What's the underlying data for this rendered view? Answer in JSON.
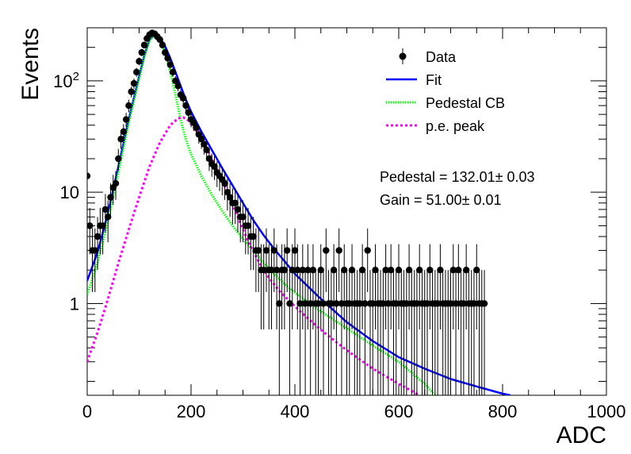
{
  "chart_data": {
    "type": "scatter",
    "xlabel": "ADC",
    "ylabel": "Events",
    "xlim": [
      0,
      1000
    ],
    "ylim": [
      0.15,
      300
    ],
    "yscale": "log",
    "grid": false,
    "legend_position": "top-right",
    "x_ticks": [
      {
        "value": 0,
        "label": "0"
      },
      {
        "value": 200,
        "label": "200"
      },
      {
        "value": 400,
        "label": "400"
      },
      {
        "value": 600,
        "label": "600"
      },
      {
        "value": 800,
        "label": "800"
      },
      {
        "value": 1000,
        "label": "1000"
      }
    ],
    "y_ticks": [
      {
        "value": 1,
        "label": "1"
      },
      {
        "value": 10,
        "label": "10"
      },
      {
        "value": 100,
        "label": "10",
        "sup": "2"
      }
    ],
    "legend": [
      {
        "label": "Data",
        "style": "marker",
        "color": "#000000"
      },
      {
        "label": "Fit",
        "style": "line",
        "color": "#0000ff"
      },
      {
        "label": "Pedestal CB",
        "style": "dotted",
        "color": "#00ff00"
      },
      {
        "label": "p.e. peak",
        "style": "dashed",
        "color": "#ff00ff"
      }
    ],
    "annotations": [
      "Pedestal = 132.01± 0.03",
      "Gain = 51.00± 0.01"
    ],
    "series": [
      {
        "name": "Data",
        "kind": "points",
        "color": "#000000",
        "x": [
          0,
          5,
          10,
          15,
          20,
          25,
          30,
          35,
          40,
          45,
          50,
          55,
          60,
          65,
          70,
          75,
          80,
          85,
          90,
          95,
          100,
          105,
          110,
          115,
          120,
          125,
          130,
          135,
          140,
          145,
          150,
          155,
          160,
          165,
          170,
          175,
          180,
          185,
          190,
          195,
          200,
          205,
          210,
          215,
          220,
          225,
          230,
          235,
          240,
          245,
          250,
          255,
          260,
          265,
          270,
          275,
          280,
          285,
          290,
          295,
          300,
          305,
          310,
          315,
          320,
          325,
          330,
          335,
          340,
          345,
          350,
          355,
          360,
          365,
          370,
          375,
          380,
          385,
          390,
          395,
          400,
          405,
          410,
          415,
          420,
          425,
          430,
          435,
          440,
          445,
          450,
          455,
          460,
          465,
          470,
          475,
          480,
          485,
          490,
          495,
          500,
          505,
          510,
          515,
          520,
          525,
          530,
          535,
          540,
          545,
          550,
          555,
          560,
          565,
          570,
          575,
          580,
          585,
          590,
          595,
          600,
          605,
          610,
          615,
          620,
          625,
          630,
          635,
          640,
          645,
          650,
          655,
          660,
          665,
          670,
          675,
          680,
          685,
          690,
          695,
          700,
          705,
          710,
          715,
          720,
          725,
          730,
          735,
          740,
          745,
          750,
          755,
          760,
          765
        ],
        "y": [
          14,
          5,
          3,
          3,
          4,
          5,
          5,
          7,
          6,
          9,
          11,
          12,
          20,
          30,
          35,
          45,
          60,
          80,
          95,
          120,
          150,
          180,
          210,
          240,
          260,
          270,
          265,
          250,
          235,
          210,
          180,
          160,
          140,
          120,
          100,
          90,
          75,
          70,
          60,
          52,
          45,
          42,
          38,
          33,
          30,
          27,
          24,
          20,
          18,
          17,
          15,
          14,
          13,
          12,
          10,
          9,
          8,
          8,
          7,
          6,
          6,
          5,
          5,
          4,
          4,
          3,
          3,
          2,
          2,
          3,
          2,
          2,
          3,
          2,
          1,
          2,
          2,
          3,
          1,
          2,
          3,
          2,
          1,
          2,
          1,
          2,
          1,
          2,
          1,
          1,
          2,
          1,
          3,
          1,
          1,
          2,
          1,
          3,
          1,
          2,
          1,
          1,
          2,
          1,
          1,
          1,
          2,
          1,
          3,
          1,
          1,
          2,
          1,
          1,
          1,
          2,
          1,
          2,
          1,
          1,
          2,
          1,
          1,
          1,
          2,
          1,
          1,
          1,
          2,
          1,
          1,
          1,
          2,
          1,
          1,
          1,
          2,
          1,
          1,
          1,
          1,
          2,
          1,
          2,
          1,
          1,
          2,
          1,
          1,
          1,
          2,
          1,
          1,
          1
        ]
      },
      {
        "name": "Fit",
        "kind": "line",
        "color": "#0000ff",
        "x": [
          0,
          20,
          40,
          60,
          80,
          100,
          110,
          120,
          130,
          140,
          150,
          160,
          170,
          180,
          190,
          200,
          220,
          240,
          260,
          280,
          300,
          320,
          340,
          360,
          380,
          400,
          450,
          500,
          550,
          600,
          650,
          700,
          750,
          800,
          815
        ],
        "y": [
          1.6,
          2.9,
          6.5,
          17,
          45,
          110,
          170,
          235,
          262,
          245,
          205,
          160,
          120,
          90,
          68,
          53,
          35,
          24,
          16.5,
          11.5,
          8.0,
          5.6,
          4.1,
          3.1,
          2.4,
          1.85,
          1.1,
          0.68,
          0.46,
          0.33,
          0.26,
          0.21,
          0.18,
          0.155,
          0.15
        ]
      },
      {
        "name": "Pedestal CB",
        "kind": "line",
        "color": "#00ff00",
        "x": [
          0,
          20,
          40,
          60,
          80,
          100,
          110,
          120,
          130,
          140,
          150,
          160,
          170,
          180,
          190,
          200,
          220,
          240,
          260,
          280,
          300,
          320,
          340,
          360,
          380,
          400,
          450,
          500,
          550,
          600,
          650,
          670
        ],
        "y": [
          1.2,
          2.3,
          5.5,
          15,
          42,
          105,
          165,
          230,
          258,
          235,
          180,
          120,
          75,
          45,
          30,
          22,
          14,
          9.5,
          6.8,
          5.0,
          3.8,
          3.0,
          2.3,
          1.85,
          1.5,
          1.25,
          0.85,
          0.6,
          0.42,
          0.3,
          0.19,
          0.15
        ]
      },
      {
        "name": "p.e. peak",
        "kind": "line",
        "color": "#ff00ff",
        "x": [
          0,
          20,
          40,
          60,
          80,
          100,
          120,
          140,
          160,
          175,
          185,
          195,
          210,
          230,
          250,
          270,
          290,
          310,
          330,
          350,
          370,
          390,
          410,
          450,
          500,
          550,
          600,
          640
        ],
        "y": [
          0.3,
          0.55,
          1.1,
          2.3,
          4.6,
          9,
          17,
          28,
          40,
          46,
          47,
          44,
          36,
          25,
          16,
          10,
          6,
          3.6,
          2.4,
          1.7,
          1.3,
          1.05,
          0.85,
          0.58,
          0.38,
          0.26,
          0.19,
          0.15
        ]
      }
    ]
  }
}
